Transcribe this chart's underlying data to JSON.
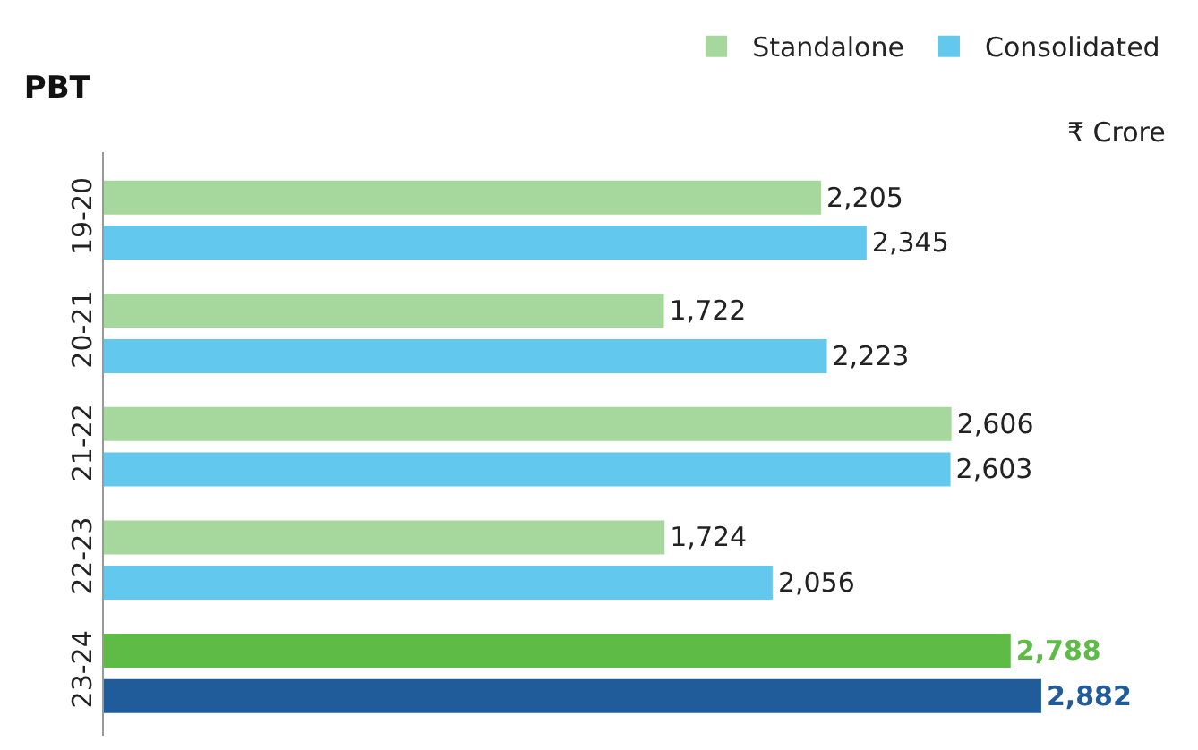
{
  "chart_data": {
    "type": "bar",
    "orientation": "horizontal",
    "title": "PBT",
    "annotations": [
      "₹ Crore"
    ],
    "categories": [
      "19-20",
      "20-21",
      "21-22",
      "22-23",
      "23-24"
    ],
    "series": [
      {
        "name": "Standalone",
        "color": "#a6d79c",
        "colors": [
          "#a6d79c",
          "#a6d79c",
          "#a6d79c",
          "#a6d79c",
          "#5dbb46"
        ],
        "values": [
          2205,
          1722,
          2606,
          1724,
          2788
        ],
        "value_labels": [
          "2,205",
          "1,722",
          "2,606",
          "1,724",
          "2,788"
        ]
      },
      {
        "name": "Consolidated",
        "color": "#62c8ee",
        "colors": [
          "#62c8ee",
          "#62c8ee",
          "#62c8ee",
          "#62c8ee",
          "#1f5c99"
        ],
        "values": [
          2345,
          2223,
          2603,
          2056,
          2882
        ],
        "value_labels": [
          "2,345",
          "2,223",
          "2,603",
          "2,056",
          "2,882"
        ]
      }
    ],
    "legend": "top right"
  }
}
